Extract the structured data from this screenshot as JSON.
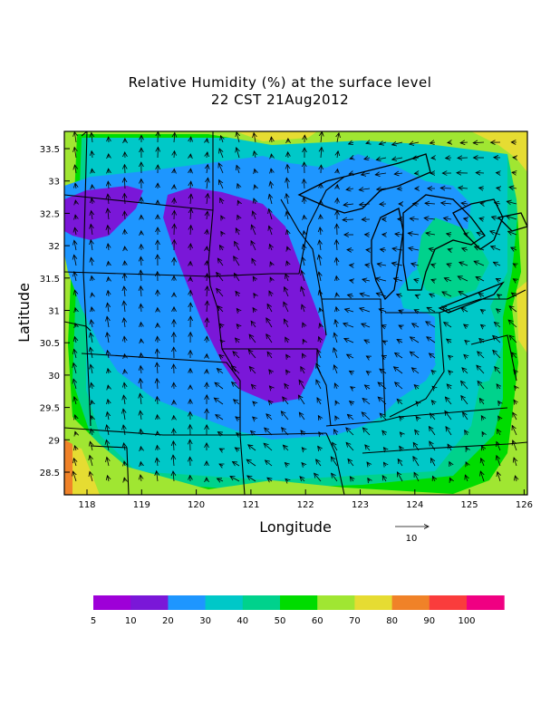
{
  "title": {
    "line1": "Relative Humidity (%) at the surface level",
    "line2": "22 CST 21Aug2012"
  },
  "axes": {
    "xlabel": "Longitude",
    "ylabel": "Latitude",
    "x_ticks": [
      "118",
      "119",
      "120",
      "121",
      "122",
      "123",
      "124",
      "125",
      "126"
    ],
    "y_ticks": [
      "33.5",
      "33",
      "32.5",
      "32",
      "31.5",
      "31",
      "30.5",
      "30",
      "29.5",
      "29",
      "28.5"
    ]
  },
  "vector_legend": {
    "label": "10"
  },
  "colorbar": {
    "labels": [
      "5",
      "10",
      "20",
      "30",
      "40",
      "50",
      "60",
      "70",
      "80",
      "90",
      "100"
    ],
    "colors": [
      "#9e00d8",
      "#7a17d8",
      "#1e96ff",
      "#00c8c8",
      "#00d28c",
      "#00dc00",
      "#a0e632",
      "#e6dc32",
      "#f08228",
      "#fa3c3c",
      "#f00082"
    ]
  }
}
